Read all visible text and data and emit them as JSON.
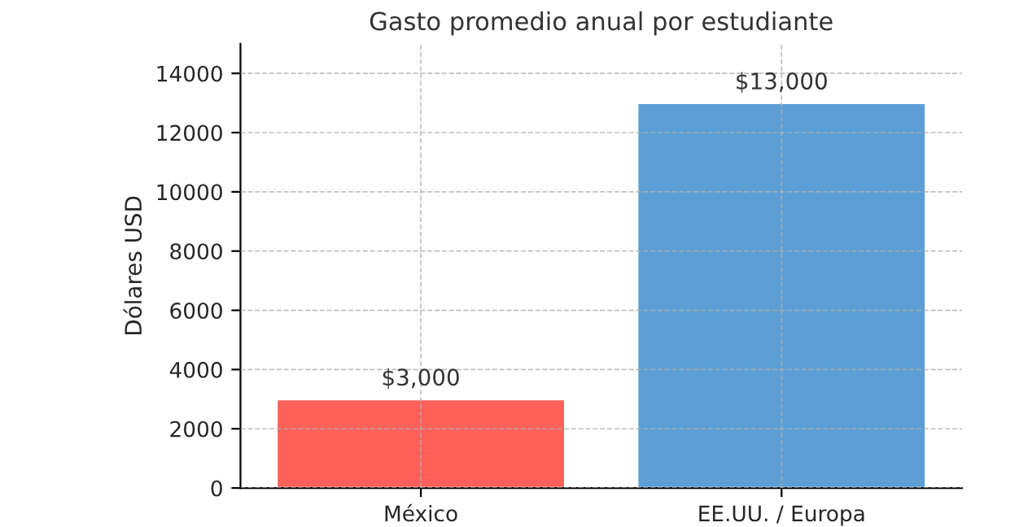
{
  "chart_data": {
    "type": "bar",
    "title": "Gasto promedio anual por estudiante",
    "ylabel": "Dólares USD",
    "categories": [
      "México",
      "EE.UU. / Europa"
    ],
    "values": [
      3000,
      13000
    ],
    "colors": [
      "#ff6159",
      "#5b9fd6"
    ],
    "value_labels": [
      "$3,000",
      "$13,000"
    ],
    "ylim": [
      0,
      15000
    ],
    "yticks": [
      0,
      2000,
      4000,
      6000,
      8000,
      10000,
      12000,
      14000
    ],
    "grid": true
  }
}
